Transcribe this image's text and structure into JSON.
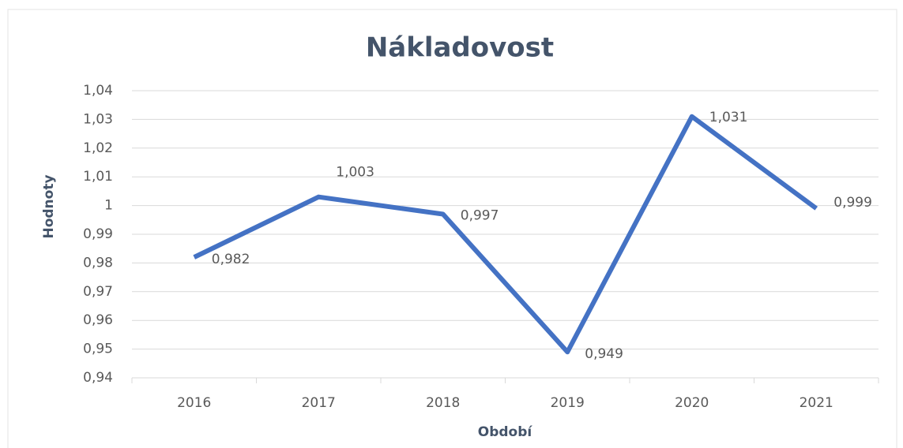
{
  "chart_data": {
    "type": "line",
    "title": "Nákladovost",
    "x_label": "Období",
    "y_label": "Hodnoty",
    "categories": [
      "2016",
      "2017",
      "2018",
      "2019",
      "2020",
      "2021"
    ],
    "series": [
      {
        "name": "Nákladovost",
        "color": "#4472c4",
        "values": [
          0.982,
          1.003,
          0.997,
          0.949,
          1.031,
          0.999
        ],
        "value_labels": [
          "0,982",
          "1,003",
          "0,997",
          "0,949",
          "1,031",
          "0,999"
        ]
      }
    ],
    "ylim": [
      0.94,
      1.04
    ],
    "yticks": [
      {
        "value": 0.94,
        "label": "0,94"
      },
      {
        "value": 0.95,
        "label": "0,95"
      },
      {
        "value": 0.96,
        "label": "0,96"
      },
      {
        "value": 0.97,
        "label": "0,97"
      },
      {
        "value": 0.98,
        "label": "0,98"
      },
      {
        "value": 0.99,
        "label": "0,99"
      },
      1,
      {
        "value": 1.01,
        "label": "1,01"
      },
      {
        "value": 1.02,
        "label": "1,02"
      },
      {
        "value": 1.03,
        "label": "1,03"
      },
      {
        "value": 1.04,
        "label": "1,04"
      }
    ],
    "grid": true
  }
}
